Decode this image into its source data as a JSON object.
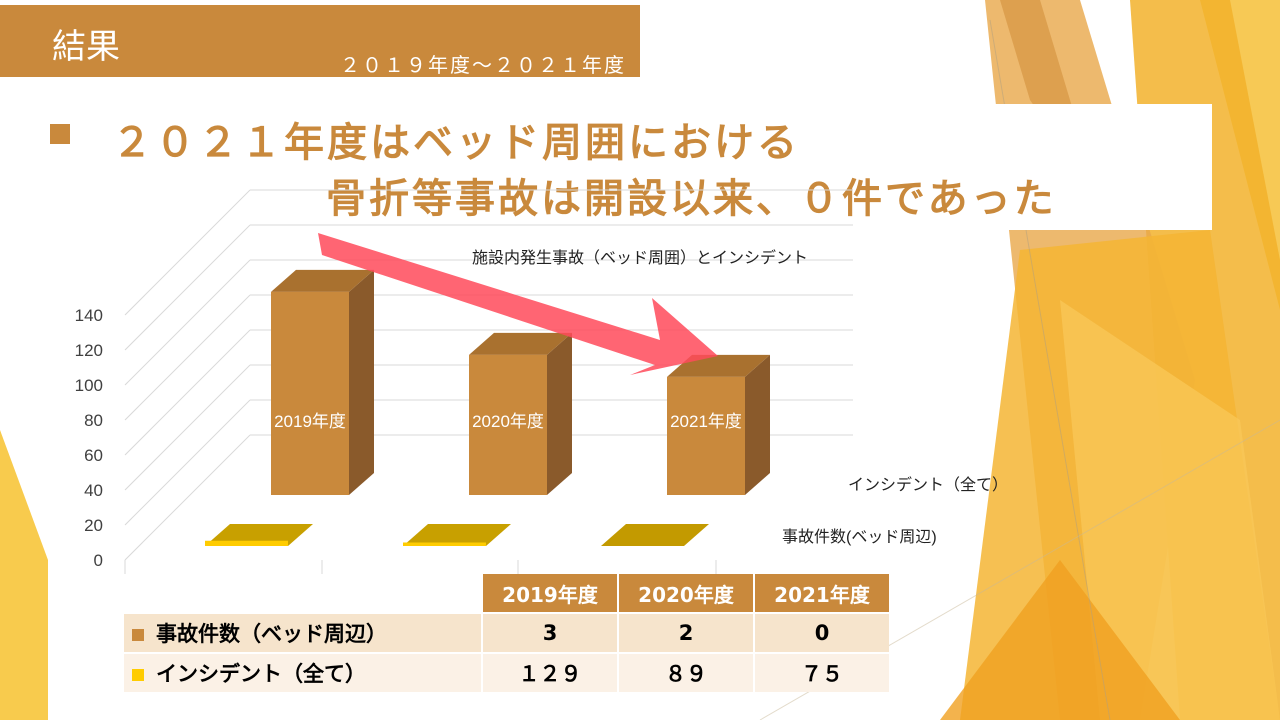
{
  "header": {
    "title": "結果",
    "subtitle": "２０１９年度～２０２１年度"
  },
  "headline": {
    "line1": "２０２１年度はベッド周囲における",
    "line2": "骨折等事故は開設以来、０件であった"
  },
  "colors": {
    "accent": "#c9893c",
    "bar_front": "#c9893c",
    "bar_side": "#8a5a2b",
    "bar_top": "#a9712f",
    "incident_marker": "#ffcc00",
    "arrow": "#ff4a5a"
  },
  "chart_data": {
    "type": "bar",
    "title": "施設内発生事故（ベッド周囲）とインシデント",
    "categories": [
      "2019年度",
      "2020年度",
      "2021年度"
    ],
    "series": [
      {
        "name": "インシデント（全て）",
        "values": [
          129,
          89,
          75
        ]
      },
      {
        "name": "事故件数(ベッド周辺)",
        "values": [
          3,
          2,
          0
        ]
      }
    ],
    "yticks": [
      "0",
      "20",
      "40",
      "60",
      "80",
      "100",
      "120",
      "140"
    ],
    "ylim": [
      0,
      140
    ],
    "grid": true,
    "legend": "right"
  },
  "table": {
    "headers": [
      "2019年度",
      "2020年度",
      "2021年度"
    ],
    "rows": [
      {
        "label": "事故件数（ベッド周辺）",
        "values": [
          "3",
          "2",
          "0"
        ]
      },
      {
        "label": "インシデント（全て）",
        "values": [
          "１２９",
          "８９",
          "７５"
        ]
      }
    ]
  }
}
